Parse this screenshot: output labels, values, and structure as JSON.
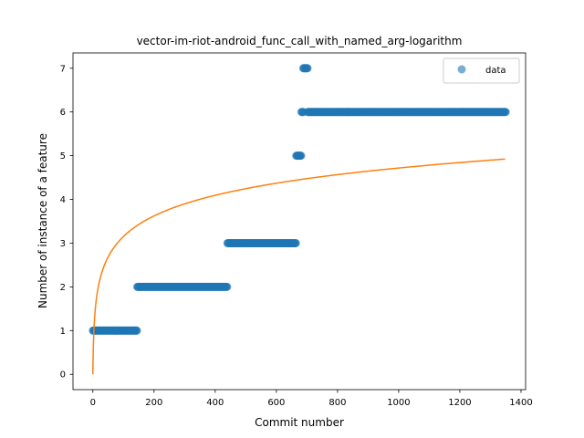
{
  "chart_data": {
    "type": "scatter",
    "title": "vector-im-riot-android_func_call_with_named_arg-logarithm",
    "xlabel": "Commit number",
    "ylabel": "Number of instance of a feature",
    "xlim": [
      -65,
      1415
    ],
    "ylim": [
      -0.35,
      7.35
    ],
    "xticks": [
      0,
      200,
      400,
      600,
      800,
      1000,
      1200,
      1400
    ],
    "yticks": [
      0,
      1,
      2,
      3,
      4,
      5,
      6,
      7
    ],
    "grid": false,
    "legend": {
      "placement": "top-right",
      "entries": [
        "data"
      ]
    },
    "colors": {
      "data": "#1f77b4",
      "fit": "#ff7f0e"
    },
    "series": [
      {
        "name": "data",
        "kind": "scatter",
        "segments": [
          {
            "x_start": 0,
            "x_end": 145,
            "y": 1
          },
          {
            "x_start": 145,
            "x_end": 440,
            "y": 2
          },
          {
            "x_start": 440,
            "x_end": 665,
            "y": 3
          },
          {
            "x_start": 665,
            "x_end": 682,
            "y": 5
          },
          {
            "x_start": 682,
            "x_end": 688,
            "y": 6
          },
          {
            "x_start": 688,
            "x_end": 702,
            "y": 7
          },
          {
            "x_start": 702,
            "x_end": 1350,
            "y": 6
          }
        ]
      },
      {
        "kind": "line",
        "model": "logarithmic",
        "formula": "y = 0.683 * ln(x + 1)",
        "x_range": [
          0,
          1348
        ],
        "coefficients": {
          "a": 0.683,
          "b": 0
        }
      }
    ]
  }
}
